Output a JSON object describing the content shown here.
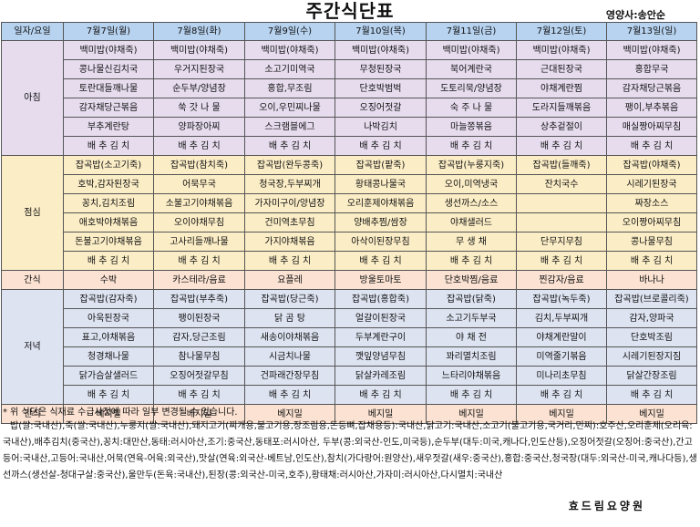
{
  "title": "주간식단표",
  "nutritionist": "영양사:송안순",
  "header": [
    "일자/요일",
    "7월7일(월)",
    "7월8일(화)",
    "7월9일(수)",
    "7월10일(목)",
    "7월11일(금)",
    "7월12일(토)",
    "7월13일(일)"
  ],
  "breakfast": {
    "label": "아침",
    "rows": [
      [
        "백미밥(야채죽)",
        "백미밥(야채죽)",
        "백미밥(야채죽)",
        "백미밥(야채죽)",
        "백미밥(야채죽)",
        "백미밥(야채죽)",
        "백미밥(야채죽)"
      ],
      [
        "콩나물신김치국",
        "우거지된장국",
        "소고기미역국",
        "무청된장국",
        "북어계란국",
        "근대된장국",
        "홍합무국"
      ],
      [
        "토란대들깨나물",
        "순두부/양념장",
        "홍합,무조림",
        "단호박범벅",
        "도토리묵/양념장",
        "야채계란찜",
        "감자채당근볶음"
      ],
      [
        "감자채당근볶음",
        "쑥 갓 나 물",
        "오이,우민찌나물",
        "오징어젓갈",
        "숙 주 나 물",
        "도라지들깨볶음",
        "팽이,부추볶음"
      ],
      [
        "부추계란탕",
        "양파장아찌",
        "스크램블에그",
        "나박김치",
        "마늘쫑볶음",
        "상추겉절이",
        "매실짱아찌무침"
      ],
      [
        "배 추 김 치",
        "배 추 김 치",
        "배 추 김 치",
        "배 추 김 치",
        "배 추 김 치",
        "배 추 김 치",
        "배 추 김 치"
      ]
    ]
  },
  "lunch": {
    "label": "점심",
    "rows": [
      [
        "잡곡밥(소고기죽)",
        "잡곡밥(참치죽)",
        "잡곡밥(완두콩죽)",
        "잡곡밥(팥죽)",
        "잡곡밥(누룽지죽)",
        "잡곡밥(들깨죽)",
        "잡곡밥(야채죽)"
      ],
      [
        "호박,감자된장국",
        "어묵무국",
        "청국장,두부찌개",
        "황태콩나물국",
        "오이,미역냉국",
        "잔치국수",
        "시레기된장국"
      ],
      [
        "꽁치,김치조림",
        "소불고기야채볶음",
        "가자미구이/양념장",
        "오리훈제야채볶음",
        "생선까스/소스",
        "",
        "짜장소스"
      ],
      [
        "애호박야채볶음",
        "오이야채무침",
        "건미역초무침",
        "양배추찜/쌈장",
        "야채샐러드",
        "",
        "오이짱아찌무침"
      ],
      [
        "돈불고기야채볶음",
        "고사리들깨나물",
        "가지야채볶음",
        "아삭이된장무침",
        "무 생 채",
        "단무지무침",
        "콩나물무침"
      ],
      [
        "배 추 김 치",
        "배 추 김 치",
        "배 추 김 치",
        "배 추 김 치",
        "배 추 김 치",
        "배 추 김 치",
        "배 추 김 치"
      ]
    ]
  },
  "snack1": {
    "label": "간식",
    "items": [
      "수박",
      "카스테라/음료",
      "요플레",
      "방울토마토",
      "단호박찜/음료",
      "찐감자/음료",
      "바나나"
    ]
  },
  "dinner": {
    "label": "저녁",
    "rows": [
      [
        "잡곡밥(감자죽)",
        "잡곡밥(부추죽)",
        "잡곡밥(당근죽)",
        "잡곡밥(홍합죽)",
        "잡곡밥(닭죽)",
        "잡곡밥(녹두죽)",
        "잡곡밥(브로콜리죽)"
      ],
      [
        "아욱된장국",
        "팽이된장국",
        "닭 곰 탕",
        "얼갈이된장국",
        "소고기두부국",
        "김치,두부찌개",
        "감자,양파국"
      ],
      [
        "표고,야채볶음",
        "감자,당근조림",
        "새송이야채볶음",
        "두부계란구이",
        "야 채 전",
        "야채계란말이",
        "단호박조림"
      ],
      [
        "청경채나물",
        "참나물무침",
        "시금치나물",
        "깻잎양념무침",
        "꽈리멸치조림",
        "미역줄기볶음",
        "시레기된장지짐"
      ],
      [
        "닭가슴살샐러드",
        "오징어젓갈무침",
        "건파래간장무침",
        "닭살카레조림",
        "느타리야채볶음",
        "미나리초무침",
        "닭살간장조림"
      ],
      [
        "배 추 김 치",
        "배 추 김 치",
        "배 추 김 치",
        "배 추 김 치",
        "배 추 김 치",
        "배 추 김 치",
        "배 추 김 치"
      ]
    ]
  },
  "snack2": {
    "label": "간식",
    "items": [
      "베지밀",
      "베지밀",
      "베지밀",
      "베지밀",
      "베지밀",
      "베지밀",
      "베지밀"
    ]
  },
  "note": "* 위 식단은 식재료 수급사정에 따라 일부 변경될 수 있습니다.",
  "origin": "밥(쌀:국내산),죽(쌀:국내산),누룽지(쌀:국내산),돼지고기(찌개용,불고기용,장조림용,돈등뼈,잡채용등):국내산,닭고기:국내산,소고기(불고기용,국거리,민찌):호주산,오리훈제(오리육:국내산),배추김치(중국산),꽁치:대만산,동태:러시아산,조기:중국산,동태포:러시아산, 두부(콩:외국산-인도,미국등),순두부(대두:미국,캐나다,인도산등),오징어젓갈(오징어:중국산),간고등어:국내산,고등어:국내산,어묵(연육-어육:외국산),맛살(연육:외국산-베트남,인도산),참치(가다랑어:원양산),새우젓갈(새우:중국산),홍합:중국산,청국장(대두:외국산-미국,캐나다등),생선까스(생선살-청대구살:중국산),울만두(돈육:국내산),된장(콩:외국산-미국,호주),황태채:러시아산,가자미:러시아산,다시멸치:국내산",
  "facility": "효드림요양원",
  "colors": {
    "header": "#b7d3f0",
    "breakfast": "#e6dcee",
    "lunch": "#fbedc6",
    "snack": "#fbe2d2",
    "dinner": "#dde3f1"
  }
}
